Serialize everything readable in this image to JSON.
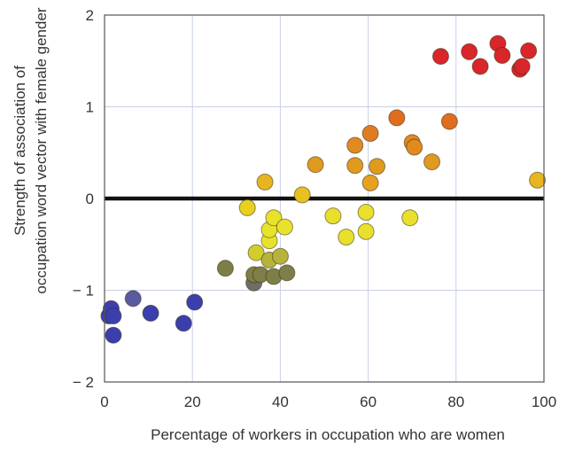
{
  "chart_data": {
    "type": "scatter",
    "xlabel": "Percentage of workers in occupation who are women",
    "ylabel_lines": [
      "Strength of association of",
      "occupation word vector with female gender"
    ],
    "xlim": [
      0,
      100
    ],
    "ylim": [
      -2,
      2
    ],
    "x_ticks": [
      0,
      20,
      40,
      60,
      80,
      100
    ],
    "y_ticks": [
      -2,
      -1,
      0,
      1,
      2
    ],
    "x_tick_labels": [
      "0",
      "20",
      "40",
      "60",
      "80",
      "100"
    ],
    "y_tick_labels": [
      "− 2",
      "− 1",
      "0",
      "1",
      "2"
    ],
    "grid": true,
    "reference_line_y": 0,
    "points": [
      {
        "x": 1,
        "y": -1.28,
        "color": "#3b3fae"
      },
      {
        "x": 1.5,
        "y": -1.2,
        "color": "#3b3fae"
      },
      {
        "x": 2,
        "y": -1.28,
        "color": "#3b3fae"
      },
      {
        "x": 2,
        "y": -1.49,
        "color": "#3b3fae"
      },
      {
        "x": 6.5,
        "y": -1.09,
        "color": "#5a5aa0"
      },
      {
        "x": 10.5,
        "y": -1.25,
        "color": "#3b3fae"
      },
      {
        "x": 18,
        "y": -1.36,
        "color": "#3b3fae"
      },
      {
        "x": 20.5,
        "y": -1.13,
        "color": "#3b3fae"
      },
      {
        "x": 27.5,
        "y": -0.76,
        "color": "#7e7e48"
      },
      {
        "x": 34,
        "y": -0.92,
        "color": "#6e6e66"
      },
      {
        "x": 34,
        "y": -0.83,
        "color": "#7e7e48"
      },
      {
        "x": 35.5,
        "y": -0.83,
        "color": "#7e7e48"
      },
      {
        "x": 38.5,
        "y": -0.85,
        "color": "#7e7e48"
      },
      {
        "x": 41.5,
        "y": -0.81,
        "color": "#7e7e48"
      },
      {
        "x": 34.5,
        "y": -0.59,
        "color": "#d2cc2c"
      },
      {
        "x": 37.5,
        "y": -0.67,
        "color": "#b7b23a"
      },
      {
        "x": 40,
        "y": -0.63,
        "color": "#b7b23a"
      },
      {
        "x": 37.5,
        "y": -0.46,
        "color": "#e8e22c"
      },
      {
        "x": 37.5,
        "y": -0.34,
        "color": "#e8e22c"
      },
      {
        "x": 38.5,
        "y": -0.21,
        "color": "#e8e22c"
      },
      {
        "x": 41,
        "y": -0.31,
        "color": "#e8e22c"
      },
      {
        "x": 32.5,
        "y": -0.1,
        "color": "#e8d020"
      },
      {
        "x": 36.5,
        "y": 0.18,
        "color": "#e8b420"
      },
      {
        "x": 45,
        "y": 0.04,
        "color": "#e8c020"
      },
      {
        "x": 48,
        "y": 0.37,
        "color": "#e09a20"
      },
      {
        "x": 52,
        "y": -0.19,
        "color": "#e8e02c"
      },
      {
        "x": 55,
        "y": -0.42,
        "color": "#e8e02c"
      },
      {
        "x": 59.5,
        "y": -0.15,
        "color": "#e8e02c"
      },
      {
        "x": 59.5,
        "y": -0.36,
        "color": "#e8e02c"
      },
      {
        "x": 57,
        "y": 0.36,
        "color": "#e09a20"
      },
      {
        "x": 57,
        "y": 0.58,
        "color": "#e08a20"
      },
      {
        "x": 60.5,
        "y": 0.71,
        "color": "#e07c20"
      },
      {
        "x": 60.5,
        "y": 0.17,
        "color": "#e8a020"
      },
      {
        "x": 62,
        "y": 0.35,
        "color": "#e09a20"
      },
      {
        "x": 66.5,
        "y": 0.88,
        "color": "#e06c20"
      },
      {
        "x": 69.5,
        "y": -0.21,
        "color": "#e8e02c"
      },
      {
        "x": 70,
        "y": 0.61,
        "color": "#e08a20"
      },
      {
        "x": 70.5,
        "y": 0.56,
        "color": "#e08a20"
      },
      {
        "x": 74.5,
        "y": 0.4,
        "color": "#e09a20"
      },
      {
        "x": 78.5,
        "y": 0.84,
        "color": "#e06c20"
      },
      {
        "x": 76.5,
        "y": 1.55,
        "color": "#d8262a"
      },
      {
        "x": 83,
        "y": 1.6,
        "color": "#d8262a"
      },
      {
        "x": 85.5,
        "y": 1.44,
        "color": "#d8262a"
      },
      {
        "x": 89.5,
        "y": 1.69,
        "color": "#d8262a"
      },
      {
        "x": 90.5,
        "y": 1.56,
        "color": "#d8262a"
      },
      {
        "x": 94.5,
        "y": 1.41,
        "color": "#d8262a"
      },
      {
        "x": 95,
        "y": 1.44,
        "color": "#d8262a"
      },
      {
        "x": 96.5,
        "y": 1.61,
        "color": "#d8262a"
      },
      {
        "x": 98.5,
        "y": 0.2,
        "color": "#e8b420"
      }
    ]
  }
}
